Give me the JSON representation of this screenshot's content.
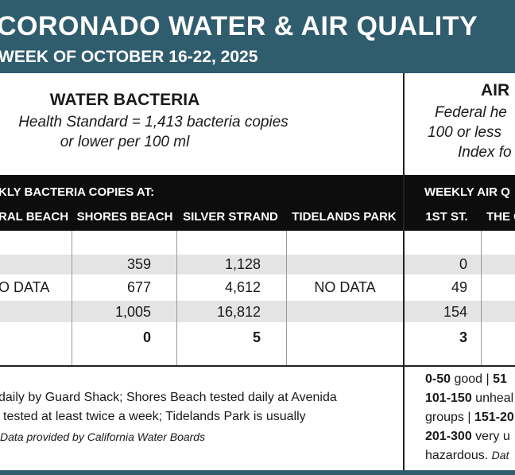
{
  "header": {
    "title": "CORONADO WATER & AIR QUALITY",
    "subtitle": "WEEK OF OCTOBER 16-22, 2025"
  },
  "water": {
    "heading": "WATER BACTERIA",
    "standard_lines": [
      "Health Standard  = 1,413 bacteria copies",
      "or lower per 100 ml"
    ]
  },
  "air": {
    "heading": "AIR",
    "standard_lines": [
      "Federal he",
      "100 or less",
      "Index fo"
    ]
  },
  "table": {
    "group_headers": [
      "KLY BACTERIA COPIES AT:",
      "WEEKLY AIR Q"
    ],
    "columns": [
      "RAL BEACH",
      "SHORES BEACH",
      "SILVER STRAND",
      "TIDELANDS PARK",
      "1ST ST.",
      "THE C"
    ],
    "rows": [
      [
        null,
        "359",
        "1,128",
        null,
        "0",
        null
      ],
      [
        "O DATA",
        "677",
        "4,612",
        "NO DATA",
        "49",
        null
      ],
      [
        null,
        "1,005",
        "16,812",
        null,
        "154",
        null
      ],
      [
        null,
        "0",
        "5",
        null,
        "3",
        null
      ]
    ]
  },
  "footer": {
    "water_notes": [
      "daily by Guard Shack; Shores Beach tested daily at Avenida",
      "tested at least twice a week; Tidelands Park is usually",
      "Data provided by California Water Boards"
    ],
    "air_notes": [
      [
        {
          "text": "0-50",
          "style": "bold"
        },
        {
          "text": " good | ",
          "style": "normal"
        },
        {
          "text": "51",
          "style": "bold"
        }
      ],
      [
        {
          "text": "101-150",
          "style": "bold"
        },
        {
          "text": " unheal",
          "style": "normal"
        }
      ],
      [
        {
          "text": "groups | ",
          "style": "normal"
        },
        {
          "text": "151-20",
          "style": "bold"
        }
      ],
      [
        {
          "text": "201-300",
          "style": "bold"
        },
        {
          "text": " very u",
          "style": "normal"
        }
      ],
      [
        {
          "text": "hazardous. ",
          "style": "normal"
        },
        {
          "text": "Dat",
          "style": "italic"
        }
      ]
    ]
  }
}
